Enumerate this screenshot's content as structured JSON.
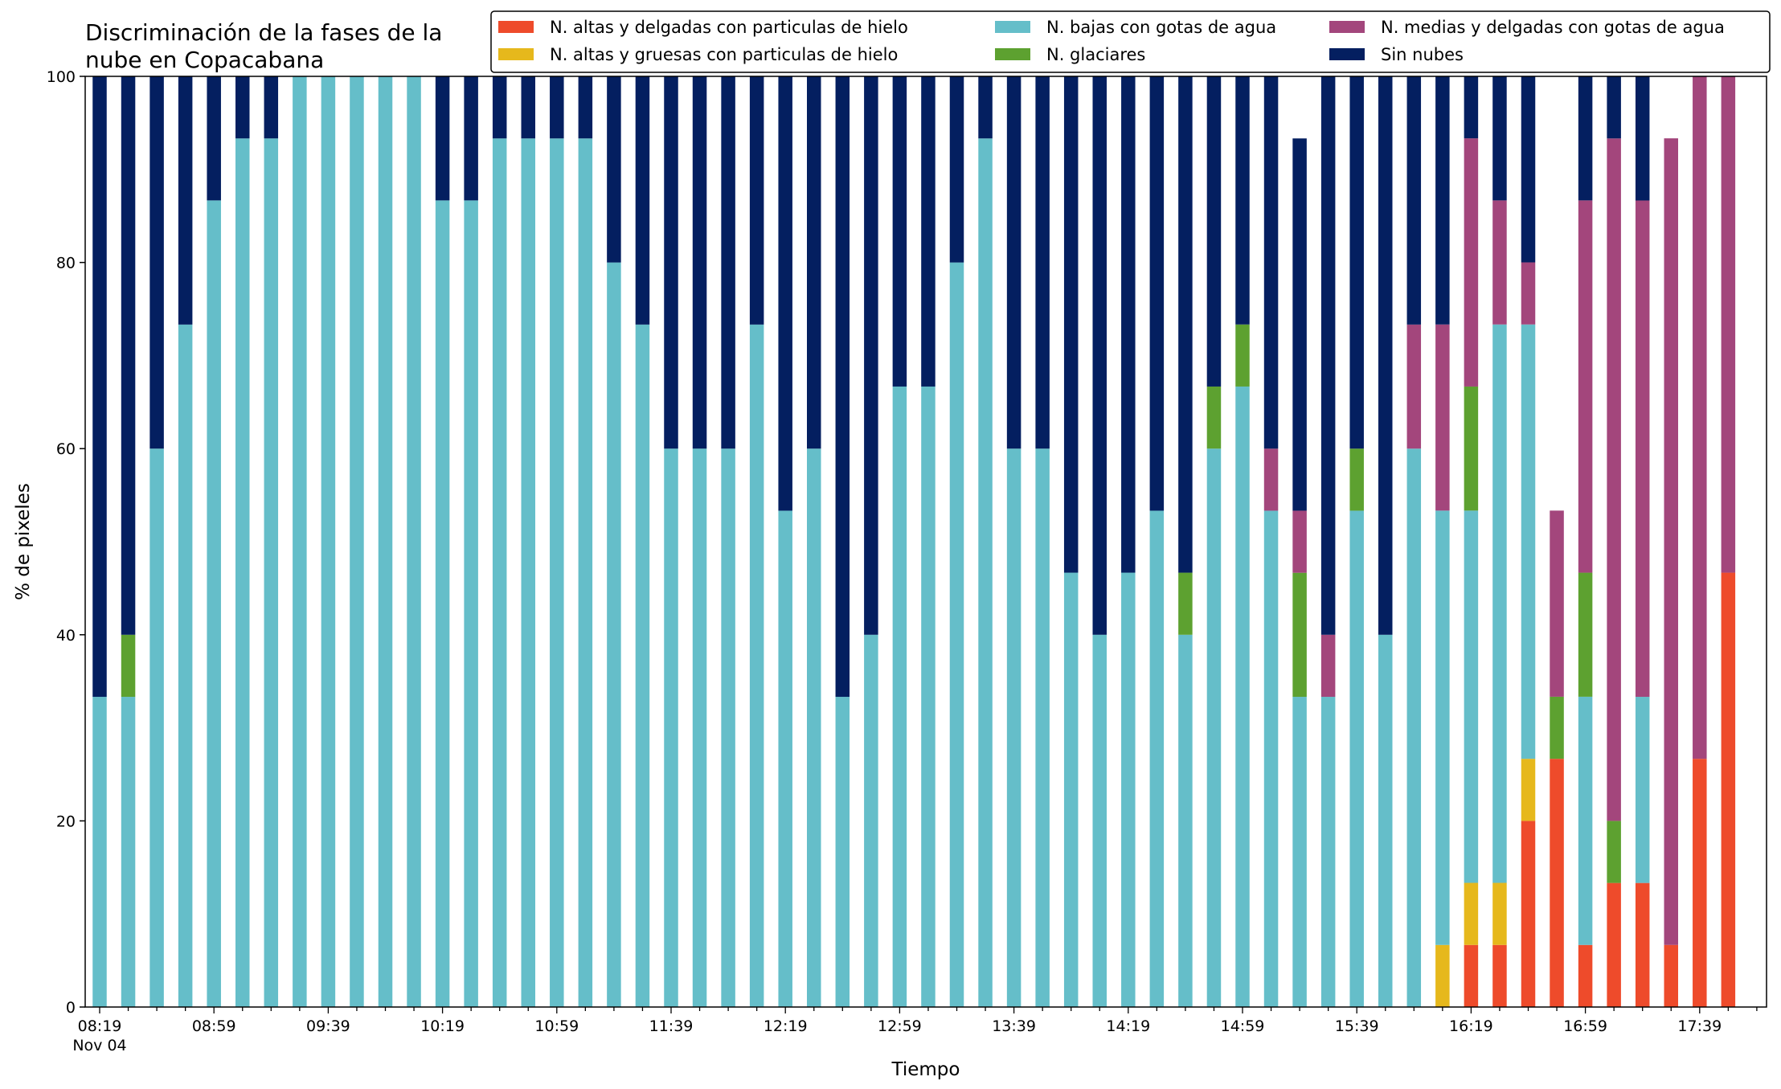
{
  "chart_data": {
    "type": "bar",
    "stacked": true,
    "title_lines": [
      "Discriminación de la fases de la",
      "nube en Copacabana"
    ],
    "xlabel": "Tiempo",
    "ylabel": "% de pixeles",
    "ylim": [
      0,
      100
    ],
    "yticks": [
      "0",
      "20",
      "40",
      "60",
      "80",
      "100"
    ],
    "xtick_labels": [
      [
        "08:19",
        "Nov 04"
      ],
      [
        "08:59"
      ],
      [
        "09:39"
      ],
      [
        "10:19"
      ],
      [
        "10:59"
      ],
      [
        "11:39"
      ],
      [
        "12:19"
      ],
      [
        "12:59"
      ],
      [
        "13:39"
      ],
      [
        "14:19"
      ],
      [
        "14:59"
      ],
      [
        "15:39"
      ],
      [
        "16:19"
      ],
      [
        "16:59"
      ],
      [
        "17:39"
      ]
    ],
    "grid": false,
    "legend_position": "top-right",
    "series": [
      {
        "name": "N. altas y delgadas con particulas de hielo",
        "color": "#ee4b2b",
        "values": [
          0,
          0,
          0,
          0,
          0,
          0,
          0,
          0,
          0,
          0,
          0,
          0,
          0,
          0,
          0,
          0,
          0,
          0,
          0,
          0,
          0,
          0,
          0,
          0,
          0,
          0,
          0,
          0,
          0,
          0,
          0,
          0,
          0,
          0,
          0,
          0,
          0,
          0,
          0,
          0,
          0,
          0,
          0,
          0,
          0,
          0,
          0,
          0,
          6.67,
          6.67,
          20,
          26.67,
          6.67,
          13.33,
          13.33,
          6.67,
          26.67,
          46.67
        ]
      },
      {
        "name": "N. altas y gruesas con particulas de hielo",
        "color": "#e6b81c",
        "values": [
          0,
          0,
          0,
          0,
          0,
          0,
          0,
          0,
          0,
          0,
          0,
          0,
          0,
          0,
          0,
          0,
          0,
          0,
          0,
          0,
          0,
          0,
          0,
          0,
          0,
          0,
          0,
          0,
          0,
          0,
          0,
          0,
          0,
          0,
          0,
          0,
          0,
          0,
          0,
          0,
          0,
          0,
          0,
          0,
          0,
          0,
          0,
          6.67,
          6.67,
          6.67,
          6.67,
          0,
          0,
          0,
          0,
          0,
          0,
          0
        ]
      },
      {
        "name": "N. bajas con gotas de agua",
        "color": "#65bec9",
        "values": [
          33.33,
          33.33,
          60,
          73.33,
          86.67,
          93.33,
          93.33,
          100,
          100,
          100,
          100,
          100,
          86.67,
          86.67,
          93.33,
          93.33,
          93.33,
          93.33,
          80,
          73.33,
          60,
          60,
          60,
          73.33,
          53.33,
          60,
          33.33,
          40,
          66.67,
          66.67,
          80,
          93.33,
          60,
          60,
          46.67,
          40,
          46.67,
          53.33,
          40,
          60,
          66.67,
          53.33,
          33.33,
          33.33,
          53.33,
          40,
          60,
          46.67,
          40,
          60,
          46.67,
          0,
          26.67,
          0,
          20,
          0,
          0,
          0
        ]
      },
      {
        "name": "N. glaciares",
        "color": "#5da130",
        "values": [
          0,
          6.67,
          0,
          0,
          0,
          0,
          0,
          0,
          0,
          0,
          0,
          0,
          0,
          0,
          0,
          0,
          0,
          0,
          0,
          0,
          0,
          0,
          0,
          0,
          0,
          0,
          0,
          0,
          0,
          0,
          0,
          0,
          0,
          0,
          0,
          0,
          0,
          0,
          6.67,
          6.67,
          6.67,
          0,
          13.33,
          0,
          6.67,
          0,
          0,
          0,
          13.33,
          0,
          0,
          6.67,
          13.33,
          6.67,
          0,
          0,
          0,
          0
        ]
      },
      {
        "name": "N. medias y delgadas con gotas de agua",
        "color": "#a3467c",
        "values": [
          0,
          0,
          0,
          0,
          0,
          0,
          0,
          0,
          0,
          0,
          0,
          0,
          0,
          0,
          0,
          0,
          0,
          0,
          0,
          0,
          0,
          0,
          0,
          0,
          0,
          0,
          0,
          0,
          0,
          0,
          0,
          0,
          0,
          0,
          0,
          0,
          0,
          0,
          0,
          0,
          0,
          6.67,
          6.67,
          6.67,
          0,
          0,
          13.33,
          20,
          26.67,
          13.33,
          6.67,
          20,
          40,
          73.33,
          53.33,
          86.67,
          73.33,
          53.33
        ]
      },
      {
        "name": "Sin nubes",
        "color": "#041f60",
        "values": [
          66.67,
          60,
          40,
          26.67,
          13.33,
          6.67,
          6.67,
          0,
          0,
          0,
          0,
          0,
          13.33,
          13.33,
          6.67,
          6.67,
          6.67,
          6.67,
          20,
          26.67,
          40,
          40,
          40,
          26.67,
          46.67,
          40,
          66.67,
          60,
          33.33,
          33.33,
          20,
          6.67,
          40,
          40,
          53.33,
          60,
          53.33,
          46.67,
          53.33,
          33.33,
          26.67,
          40,
          40,
          60,
          40,
          60,
          26.67,
          26.67,
          6.67,
          13.33,
          20,
          0,
          13.33,
          6.67,
          13.33,
          0,
          0,
          0
        ]
      }
    ]
  }
}
